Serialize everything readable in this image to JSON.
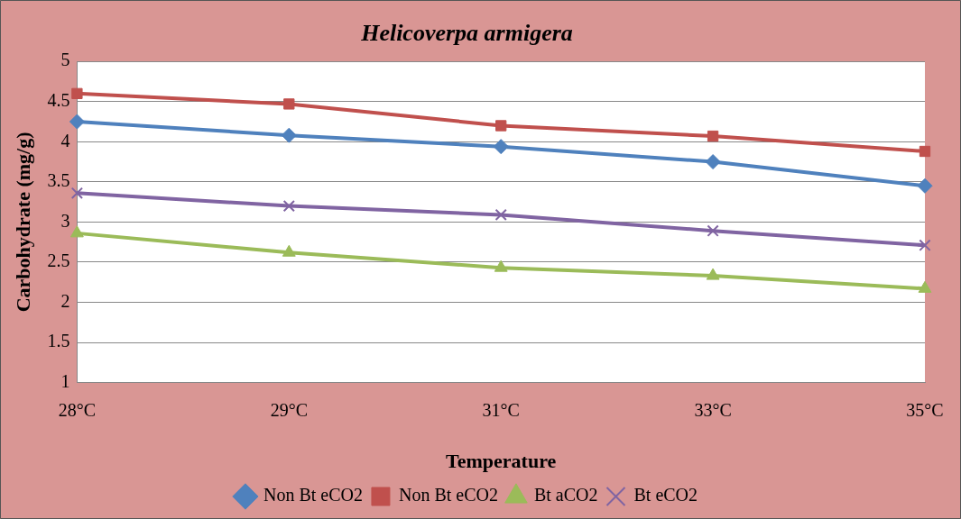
{
  "chart_data": {
    "type": "line",
    "title": "Helicoverpa armigera",
    "xlabel": "Temperature",
    "ylabel": "Carbohydrate (mg/g)",
    "categories": [
      "28°C",
      "29°C",
      "31°C",
      "33°C",
      "35°C"
    ],
    "series": [
      {
        "name": "Non Bt eCO2",
        "color": "#4f81bd",
        "marker": "diamond",
        "values": [
          4.25,
          4.08,
          3.94,
          3.75,
          3.45
        ]
      },
      {
        "name": "Non Bt eCO2",
        "color": "#c0504d",
        "marker": "square",
        "values": [
          4.6,
          4.47,
          4.2,
          4.07,
          3.88
        ]
      },
      {
        "name": "Bt aCO2",
        "color": "#9bbb59",
        "marker": "triangle",
        "values": [
          2.86,
          2.62,
          2.43,
          2.33,
          2.17
        ]
      },
      {
        "name": "Bt eCO2",
        "color": "#8064a2",
        "marker": "cross",
        "values": [
          3.36,
          3.2,
          3.09,
          2.89,
          2.71
        ]
      }
    ],
    "ylim": [
      1,
      5
    ],
    "yticks": [
      1,
      1.5,
      2,
      2.5,
      3,
      3.5,
      4,
      4.5,
      5
    ],
    "grid": "y",
    "legend": "bottom",
    "line_style": "solid"
  }
}
